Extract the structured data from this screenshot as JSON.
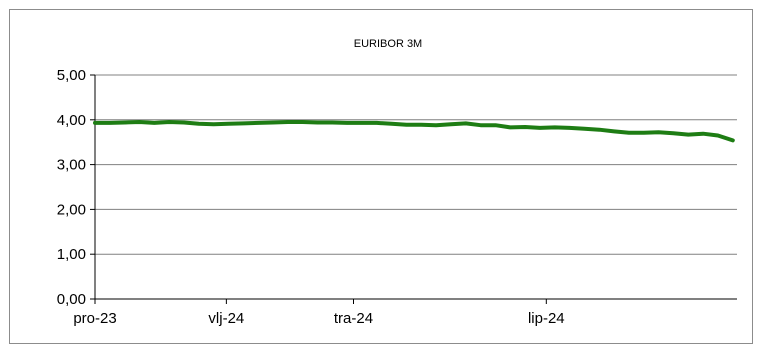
{
  "chart_data": {
    "type": "line",
    "title": "EURIBOR 3M",
    "xlabel": "",
    "ylabel": "",
    "ylim": [
      0,
      5
    ],
    "y_ticks": [
      "0,00",
      "1,00",
      "2,00",
      "3,00",
      "4,00",
      "5,00"
    ],
    "x_ticks": [
      "pro-23",
      "vlj-24",
      "tra-24",
      "lip-24"
    ],
    "grid": true,
    "legend": "none",
    "colors": {
      "line": "#1e7d14",
      "grid": "#808080",
      "axis": "#000000"
    },
    "series": [
      {
        "x": [
          "2023-12-01",
          "2023-12-08",
          "2023-12-15",
          "2023-12-22",
          "2023-12-29",
          "2024-01-05",
          "2024-01-12",
          "2024-01-19",
          "2024-01-26",
          "2024-02-02",
          "2024-02-09",
          "2024-02-16",
          "2024-02-23",
          "2024-03-01",
          "2024-03-08",
          "2024-03-15",
          "2024-03-22",
          "2024-03-29",
          "2024-04-05",
          "2024-04-12",
          "2024-04-19",
          "2024-04-26",
          "2024-05-03",
          "2024-05-10",
          "2024-05-17",
          "2024-05-24",
          "2024-05-31",
          "2024-06-07",
          "2024-06-14",
          "2024-06-21",
          "2024-06-28",
          "2024-07-05",
          "2024-07-12",
          "2024-07-19",
          "2024-07-26",
          "2024-08-02",
          "2024-08-09",
          "2024-08-16",
          "2024-08-23",
          "2024-08-30",
          "2024-09-06",
          "2024-09-13",
          "2024-09-20",
          "2024-09-27"
        ],
        "values": [
          3.93,
          3.93,
          3.94,
          3.95,
          3.93,
          3.95,
          3.94,
          3.91,
          3.9,
          3.91,
          3.92,
          3.93,
          3.94,
          3.95,
          3.95,
          3.94,
          3.94,
          3.93,
          3.93,
          3.93,
          3.91,
          3.89,
          3.89,
          3.88,
          3.9,
          3.92,
          3.88,
          3.88,
          3.83,
          3.84,
          3.82,
          3.83,
          3.82,
          3.8,
          3.78,
          3.74,
          3.71,
          3.71,
          3.72,
          3.7,
          3.67,
          3.69,
          3.65,
          3.54
        ]
      }
    ]
  }
}
